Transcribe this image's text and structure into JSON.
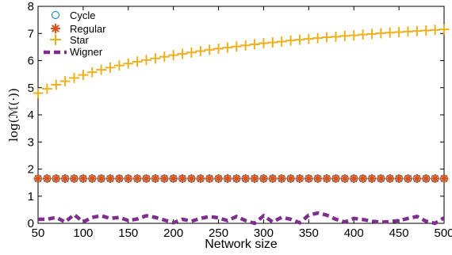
{
  "chart_data": {
    "type": "scatter",
    "xlabel": "Network size",
    "ylabel": "log(ℳ(·))",
    "xlim": [
      50,
      500
    ],
    "ylim": [
      0,
      8
    ],
    "xticks": [
      "50",
      "100",
      "150",
      "200",
      "250",
      "300",
      "350",
      "400",
      "450",
      "500"
    ],
    "yticks": [
      "0",
      "1",
      "2",
      "3",
      "4",
      "5",
      "6",
      "7",
      "8"
    ],
    "grid": false,
    "legend_position": "top-left",
    "x": [
      50,
      60,
      70,
      80,
      90,
      100,
      110,
      120,
      130,
      140,
      150,
      160,
      170,
      180,
      190,
      200,
      210,
      220,
      230,
      240,
      250,
      260,
      270,
      280,
      290,
      300,
      310,
      320,
      330,
      340,
      350,
      360,
      370,
      380,
      390,
      400,
      410,
      420,
      430,
      440,
      450,
      460,
      470,
      480,
      490,
      500
    ],
    "series": [
      {
        "name": "Cycle",
        "marker": "circle",
        "color": "#0072bd",
        "values": [
          1.65,
          1.65,
          1.65,
          1.65,
          1.65,
          1.65,
          1.65,
          1.65,
          1.65,
          1.65,
          1.65,
          1.65,
          1.65,
          1.65,
          1.65,
          1.65,
          1.65,
          1.65,
          1.65,
          1.65,
          1.65,
          1.65,
          1.65,
          1.65,
          1.65,
          1.65,
          1.65,
          1.65,
          1.65,
          1.65,
          1.65,
          1.65,
          1.65,
          1.65,
          1.65,
          1.65,
          1.65,
          1.65,
          1.65,
          1.65,
          1.65,
          1.65,
          1.65,
          1.65,
          1.65,
          1.65
        ]
      },
      {
        "name": "Regular",
        "marker": "asterisk",
        "color": "#d95319",
        "values": [
          1.65,
          1.65,
          1.65,
          1.65,
          1.65,
          1.65,
          1.65,
          1.65,
          1.65,
          1.65,
          1.65,
          1.65,
          1.65,
          1.65,
          1.65,
          1.65,
          1.65,
          1.65,
          1.65,
          1.65,
          1.65,
          1.65,
          1.65,
          1.65,
          1.65,
          1.65,
          1.65,
          1.65,
          1.65,
          1.65,
          1.65,
          1.65,
          1.65,
          1.65,
          1.65,
          1.65,
          1.65,
          1.65,
          1.65,
          1.65,
          1.65,
          1.65,
          1.65,
          1.65,
          1.65,
          1.65
        ]
      },
      {
        "name": "Star",
        "marker": "plus",
        "color": "#edb120",
        "values": [
          4.8,
          4.96,
          5.11,
          5.24,
          5.36,
          5.47,
          5.57,
          5.66,
          5.74,
          5.82,
          5.89,
          5.96,
          6.02,
          6.08,
          6.14,
          6.2,
          6.25,
          6.3,
          6.35,
          6.4,
          6.44,
          6.48,
          6.52,
          6.56,
          6.6,
          6.64,
          6.67,
          6.7,
          6.74,
          6.77,
          6.8,
          6.83,
          6.86,
          6.88,
          6.91,
          6.93,
          6.96,
          6.98,
          7.01,
          7.03,
          7.05,
          7.07,
          7.09,
          7.11,
          7.13,
          7.15
        ]
      },
      {
        "name": "Wigner",
        "marker": "dashed-line",
        "color": "#7e2f8e",
        "values": [
          0.15,
          0.15,
          0.22,
          0.05,
          0.32,
          0.05,
          0.22,
          0.28,
          0.18,
          0.22,
          0.1,
          0.16,
          0.28,
          0.22,
          0.12,
          0.02,
          0.15,
          0.08,
          0.18,
          0.25,
          0.2,
          0.1,
          0.25,
          0.1,
          0.0,
          0.28,
          0.05,
          0.22,
          0.15,
          0.02,
          0.3,
          0.38,
          0.3,
          0.15,
          0.05,
          0.18,
          0.14,
          0.08,
          0.04,
          0.06,
          0.1,
          0.18,
          0.25,
          0.08,
          0.0,
          0.2
        ]
      }
    ]
  }
}
